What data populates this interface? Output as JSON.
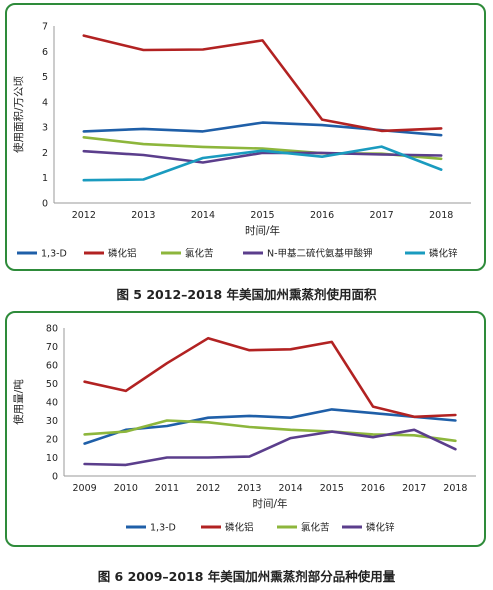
{
  "captions": {
    "fig5": "图 5   2012–2018 年美国加州熏蒸剂使用面积",
    "fig6": "图 6   2009–2018 年美国加州熏蒸剂部分品种使用量"
  },
  "chart_data": [
    {
      "type": "line",
      "title": "",
      "xlabel": "时间/年",
      "ylabel": "使用面积/万公顷",
      "x": [
        "2012",
        "2013",
        "2014",
        "2015",
        "2016",
        "2017",
        "2018"
      ],
      "ylim": [
        0,
        7
      ],
      "yticks": [
        0,
        1,
        2,
        3,
        4,
        5,
        6,
        7
      ],
      "grid": false,
      "legend": "bottom",
      "series": [
        {
          "name": "1,3-D",
          "color": "#1f5fa8",
          "values": [
            2.83,
            2.93,
            2.83,
            3.18,
            3.08,
            2.88,
            2.68
          ]
        },
        {
          "name": "磷化铝",
          "color": "#b22222",
          "values": [
            6.62,
            6.05,
            6.07,
            6.43,
            3.3,
            2.85,
            2.95
          ]
        },
        {
          "name": "氯化苦",
          "color": "#8db63c",
          "values": [
            2.6,
            2.33,
            2.22,
            2.15,
            1.97,
            1.95,
            1.75
          ]
        },
        {
          "name": "N-甲基二硫代氨基甲酸钾",
          "color": "#5b3e8c",
          "values": [
            2.05,
            1.9,
            1.6,
            1.98,
            1.98,
            1.92,
            1.88
          ]
        },
        {
          "name": "磷化锌",
          "color": "#1a9bbf",
          "values": [
            0.9,
            0.93,
            1.78,
            2.07,
            1.83,
            2.23,
            1.32
          ]
        }
      ]
    },
    {
      "type": "line",
      "title": "",
      "xlabel": "时间/年",
      "ylabel": "使用量/吨",
      "x": [
        "2009",
        "2010",
        "2011",
        "2012",
        "2013",
        "2014",
        "2015",
        "2016",
        "2017",
        "2018"
      ],
      "ylim": [
        0,
        80
      ],
      "yticks": [
        0,
        10,
        20,
        30,
        40,
        50,
        60,
        70,
        80
      ],
      "grid": false,
      "legend": "bottom",
      "series": [
        {
          "name": "1,3-D",
          "color": "#1f5fa8",
          "values": [
            17.5,
            25,
            27,
            31.5,
            32.5,
            31.5,
            36,
            34,
            32,
            30
          ]
        },
        {
          "name": "磷化铝",
          "color": "#b22222",
          "values": [
            51,
            46,
            61,
            74.5,
            68,
            68.5,
            72.5,
            37.5,
            32,
            33
          ]
        },
        {
          "name": "氯化苦",
          "color": "#8db63c",
          "values": [
            22.5,
            24,
            30,
            29,
            26.5,
            25,
            24,
            22.5,
            22,
            19
          ]
        },
        {
          "name": "磷化锌",
          "color": "#5b3e8c",
          "values": [
            6.5,
            6,
            10,
            10,
            10.5,
            20.5,
            24,
            21,
            25,
            14.5
          ]
        }
      ]
    }
  ]
}
